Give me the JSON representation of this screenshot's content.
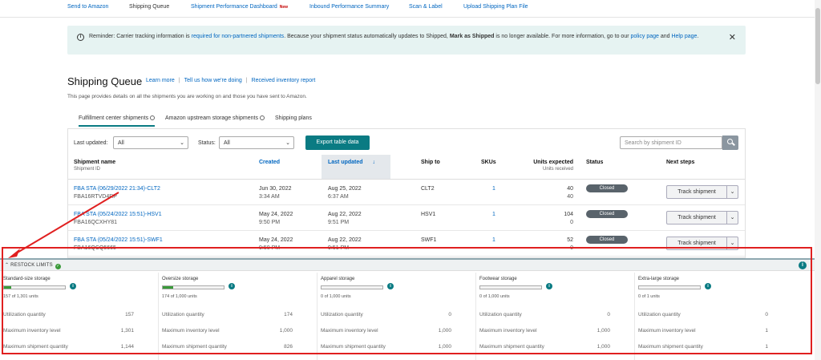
{
  "nav": {
    "items": [
      "Send to Amazon",
      "Shipping Queue",
      "Shipment Performance Dashboard",
      "Inbound Performance Summary",
      "Scan & Label",
      "Upload Shipping Plan File"
    ],
    "new_badge": "New"
  },
  "banner": {
    "text1": "Reminder: Carrier tracking information is ",
    "link1": "required for non-partnered shipments",
    "text2": ". Because your shipment status automatically updates to Shipped, ",
    "bold": "Mark as Shipped",
    "text3": " is no longer available. For more information, go to our ",
    "link2": "policy page",
    "text4": " and ",
    "link3": "Help page",
    "text5": "."
  },
  "header": {
    "title": "Shipping Queue",
    "links": [
      "Learn more",
      "Tell us how we're doing",
      "Received inventory report"
    ],
    "description": "This page provides details on all the shipments you are working on and those you have sent to Amazon."
  },
  "tabs": [
    "Fulfillment center shipments",
    "Amazon upstream storage shipments",
    "Shipping plans"
  ],
  "filters": {
    "last_updated_label": "Last updated:",
    "last_updated_value": "All",
    "status_label": "Status:",
    "status_value": "All",
    "export_label": "Export table data",
    "search_placeholder": "Search by shipment ID"
  },
  "table": {
    "headers": {
      "name": "Shipment name",
      "name_sub": "Shipment ID",
      "created": "Created",
      "updated": "Last updated",
      "ship_to": "Ship to",
      "skus": "SKUs",
      "units": "Units expected",
      "units_sub": "Units received",
      "status": "Status",
      "next": "Next steps"
    },
    "rows": [
      {
        "name": "FBA STA (06/29/2022 21:34)-CLT2",
        "id": "FBA16RTVD4RP",
        "created_date": "Jun 30, 2022",
        "created_time": "3:34 AM",
        "updated_date": "Aug 25, 2022",
        "updated_time": "6:37 AM",
        "ship_to": "CLT2",
        "skus": "1",
        "units_expected": "40",
        "units_received": "40",
        "status": "Closed",
        "action": "Track shipment"
      },
      {
        "name": "FBA STA (05/24/2022 15:51)-HSV1",
        "id": "FBA16QCXHY81",
        "created_date": "May 24, 2022",
        "created_time": "9:50 PM",
        "updated_date": "Aug 22, 2022",
        "updated_time": "9:51 PM",
        "ship_to": "HSV1",
        "skus": "1",
        "units_expected": "104",
        "units_received": "0",
        "status": "Closed",
        "action": "Track shipment"
      },
      {
        "name": "FBA STA (05/24/2022 15:51)-SWF1",
        "id": "FBA16QCQ5665",
        "created_date": "May 24, 2022",
        "created_time": "9:50 PM",
        "updated_date": "Aug 22, 2022",
        "updated_time": "9:51 PM",
        "ship_to": "SWF1",
        "skus": "1",
        "units_expected": "52",
        "units_received": "0",
        "status": "Closed",
        "action": "Track shipment"
      }
    ]
  },
  "restock": {
    "title": "RESTOCK LIMITS",
    "labels": {
      "util": "Utilization quantity",
      "max_inv": "Maximum inventory level",
      "max_ship": "Maximum shipment quantity"
    },
    "columns": [
      {
        "title": "Standard-size storage",
        "units": "157 of 1,301 units",
        "fill": 0.12,
        "util": "157",
        "max_inv": "1,301",
        "max_ship": "1,144"
      },
      {
        "title": "Oversize storage",
        "units": "174 of 1,000 units",
        "fill": 0.174,
        "util": "174",
        "max_inv": "1,000",
        "max_ship": "826"
      },
      {
        "title": "Apparel storage",
        "units": "0 of 1,000 units",
        "fill": 0,
        "util": "0",
        "max_inv": "1,000",
        "max_ship": "1,000"
      },
      {
        "title": "Footwear storage",
        "units": "0 of 1,000 units",
        "fill": 0,
        "util": "0",
        "max_inv": "1,000",
        "max_ship": "1,000"
      },
      {
        "title": "Extra-large storage",
        "units": "0 of 1 units",
        "fill": 0,
        "util": "0",
        "max_inv": "1",
        "max_ship": "1"
      }
    ]
  },
  "icons": {
    "info": "info-icon",
    "close": "close-icon",
    "search": "search-icon",
    "check": "check-icon",
    "chevron": "chevron-down-icon",
    "sort": "arrow-down-icon"
  },
  "colors": {
    "accent": "#0a7b83",
    "link": "#0066c0",
    "annotation": "#e02020",
    "progress": "#3a9a3a"
  }
}
